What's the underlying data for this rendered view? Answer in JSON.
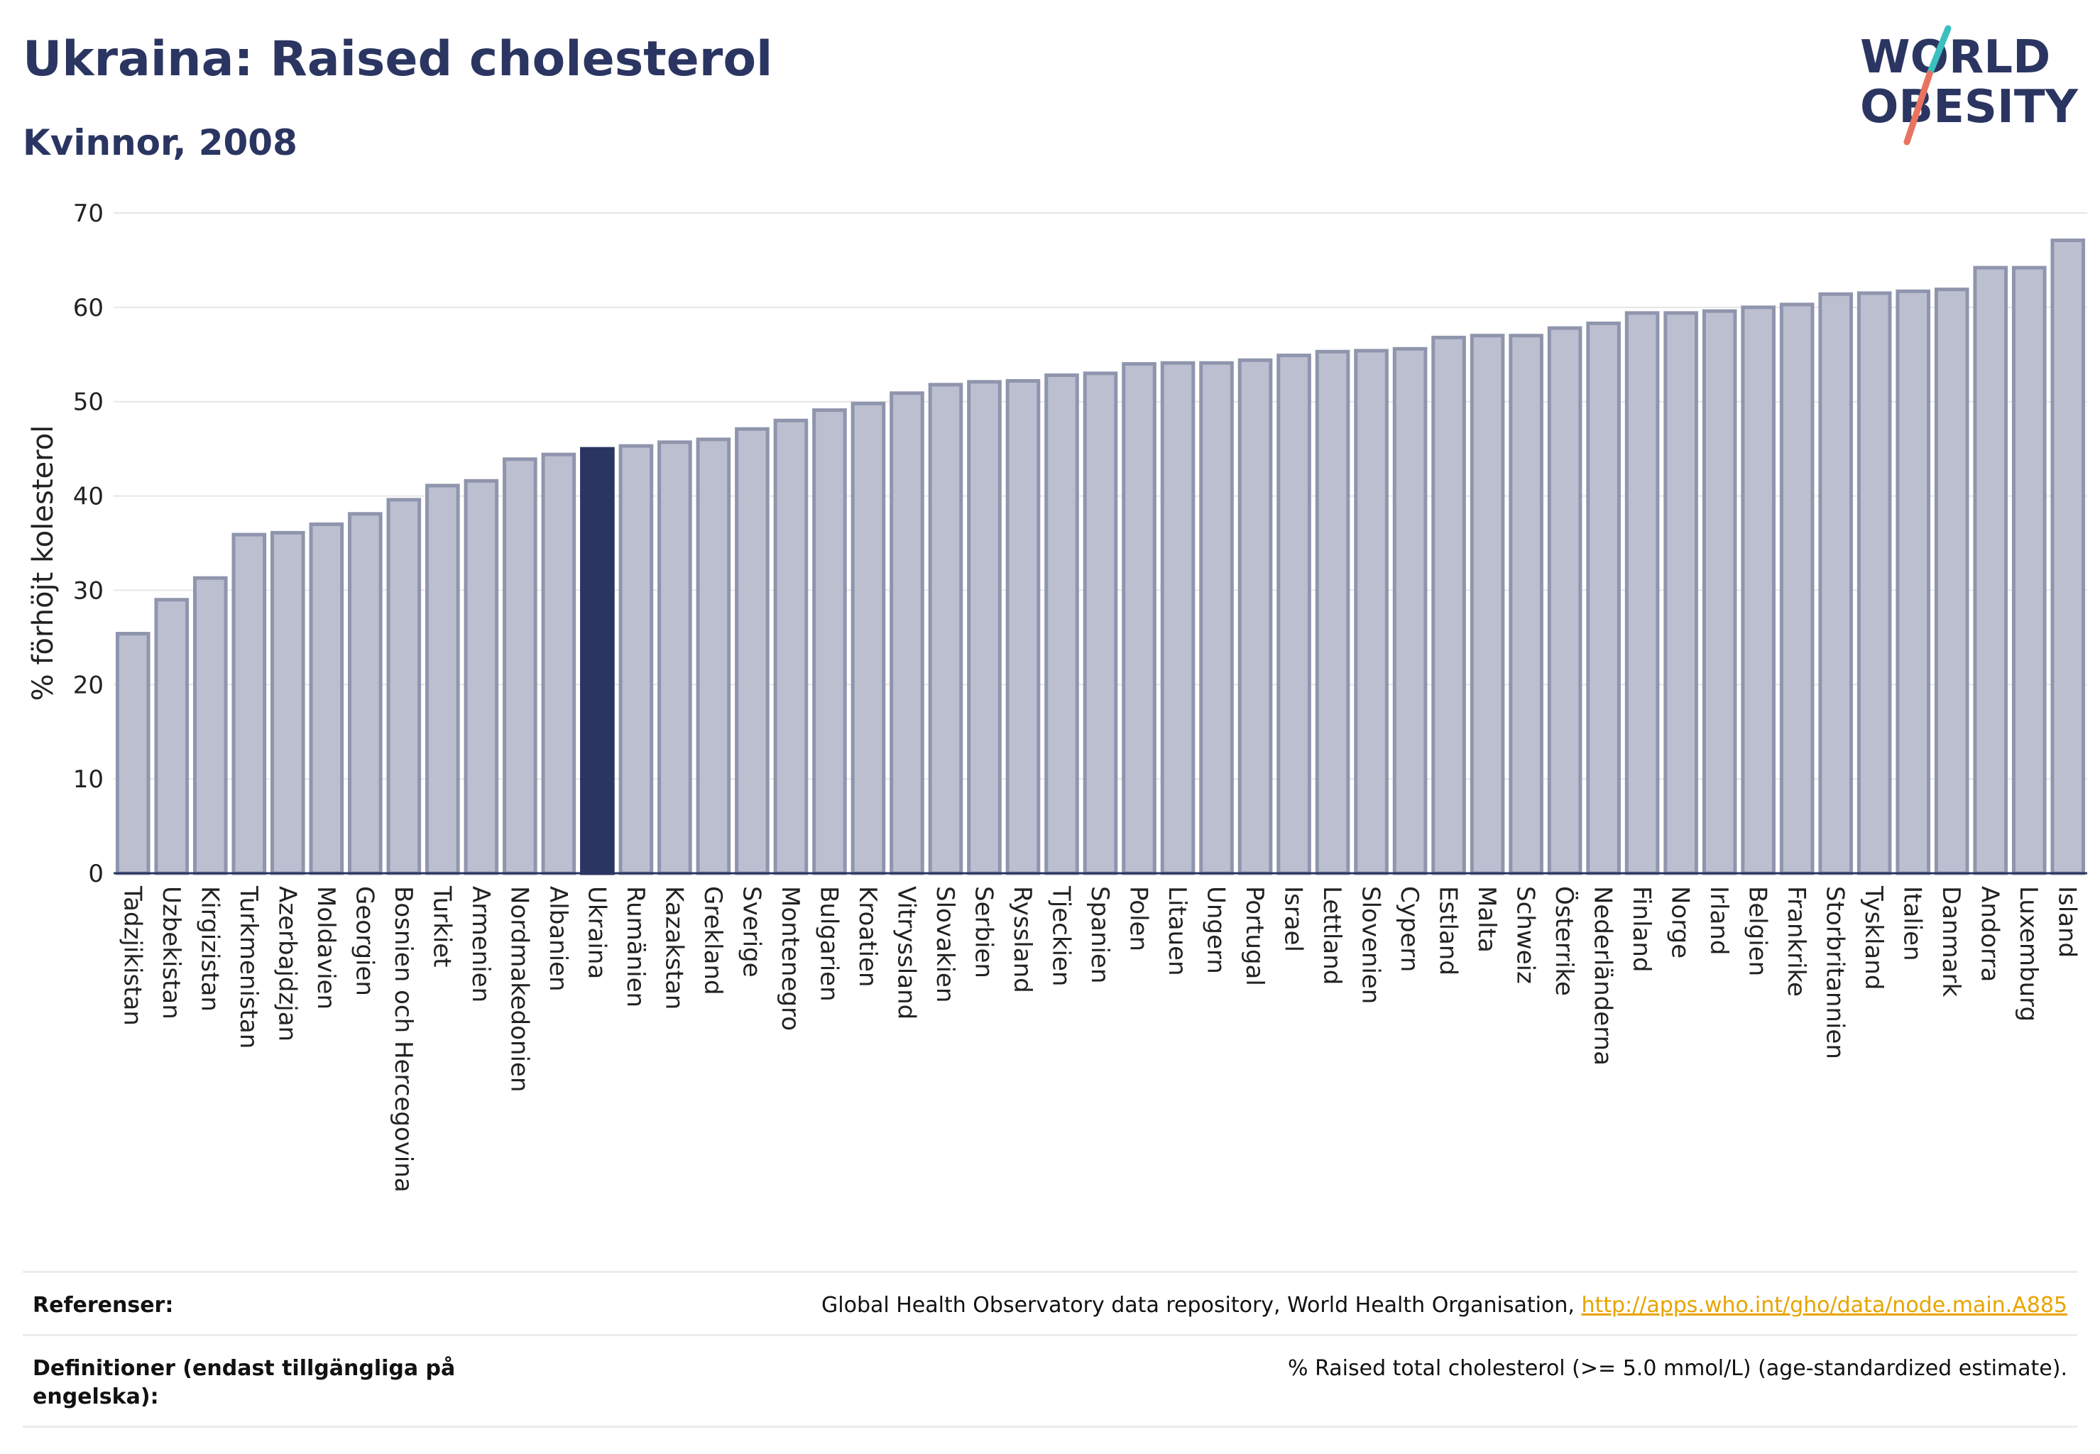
{
  "header": {
    "title": "Ukraina: Raised cholesterol",
    "subtitle": "Kvinnor, 2008",
    "logo_line1": "WORLD",
    "logo_line2": "OBESITY"
  },
  "colors": {
    "bar": "#bbbfcf",
    "bar_stroke": "#8f95ad",
    "highlight": "#2b3561",
    "grid": "#e6e6e6",
    "link": "#e8a400",
    "logo_teal": "#3bbfbf",
    "logo_coral": "#e8735f"
  },
  "chart_data": {
    "type": "bar",
    "ylabel": "% förhöjt kolesterol",
    "xlabel": "",
    "ylim": [
      0,
      70
    ],
    "yticks": [
      0,
      10,
      20,
      30,
      40,
      50,
      60,
      70
    ],
    "grid": true,
    "highlight": "Ukraina",
    "categories": [
      "Tadzjikistan",
      "Uzbekistan",
      "Kirgizistan",
      "Turkmenistan",
      "Azerbajdzjan",
      "Moldavien",
      "Georgien",
      "Bosnien och Hercegovina",
      "Turkiet",
      "Armenien",
      "Nordmakedonien",
      "Albanien",
      "Ukraina",
      "Rumänien",
      "Kazakstan",
      "Grekland",
      "Sverige",
      "Montenegro",
      "Bulgarien",
      "Kroatien",
      "Vitryssland",
      "Slovakien",
      "Serbien",
      "Ryssland",
      "Tjeckien",
      "Spanien",
      "Polen",
      "Litauen",
      "Ungern",
      "Portugal",
      "Israel",
      "Lettland",
      "Slovenien",
      "Cypern",
      "Estland",
      "Malta",
      "Schweiz",
      "Österrike",
      "Nederländerna",
      "Finland",
      "Norge",
      "Irland",
      "Belgien",
      "Frankrike",
      "Storbritannien",
      "Tyskland",
      "Italien",
      "Danmark",
      "Andorra",
      "Luxemburg",
      "Island"
    ],
    "values": [
      25.4,
      29.0,
      31.3,
      35.9,
      36.1,
      37.0,
      38.1,
      39.6,
      41.1,
      41.6,
      43.9,
      44.4,
      45.0,
      45.3,
      45.7,
      46.0,
      47.1,
      48.0,
      49.1,
      49.8,
      50.9,
      51.8,
      52.1,
      52.2,
      52.8,
      53.0,
      54.0,
      54.1,
      54.1,
      54.4,
      54.9,
      55.3,
      55.4,
      55.6,
      56.8,
      57.0,
      57.0,
      57.8,
      58.3,
      59.4,
      59.4,
      59.6,
      60.0,
      60.3,
      61.4,
      61.5,
      61.7,
      61.9,
      64.2,
      64.2,
      67.1
    ]
  },
  "footer": {
    "references_label": "Referenser:",
    "references_text": "Global Health Observatory data repository, World Health Organisation, ",
    "references_link": "http://apps.who.int/gho/data/node.main.A885",
    "definitions_label": "Definitioner (endast tillgängliga på engelska):",
    "definitions_text": "% Raised total cholesterol (>= 5.0 mmol/L) (age-standardized estimate)."
  }
}
